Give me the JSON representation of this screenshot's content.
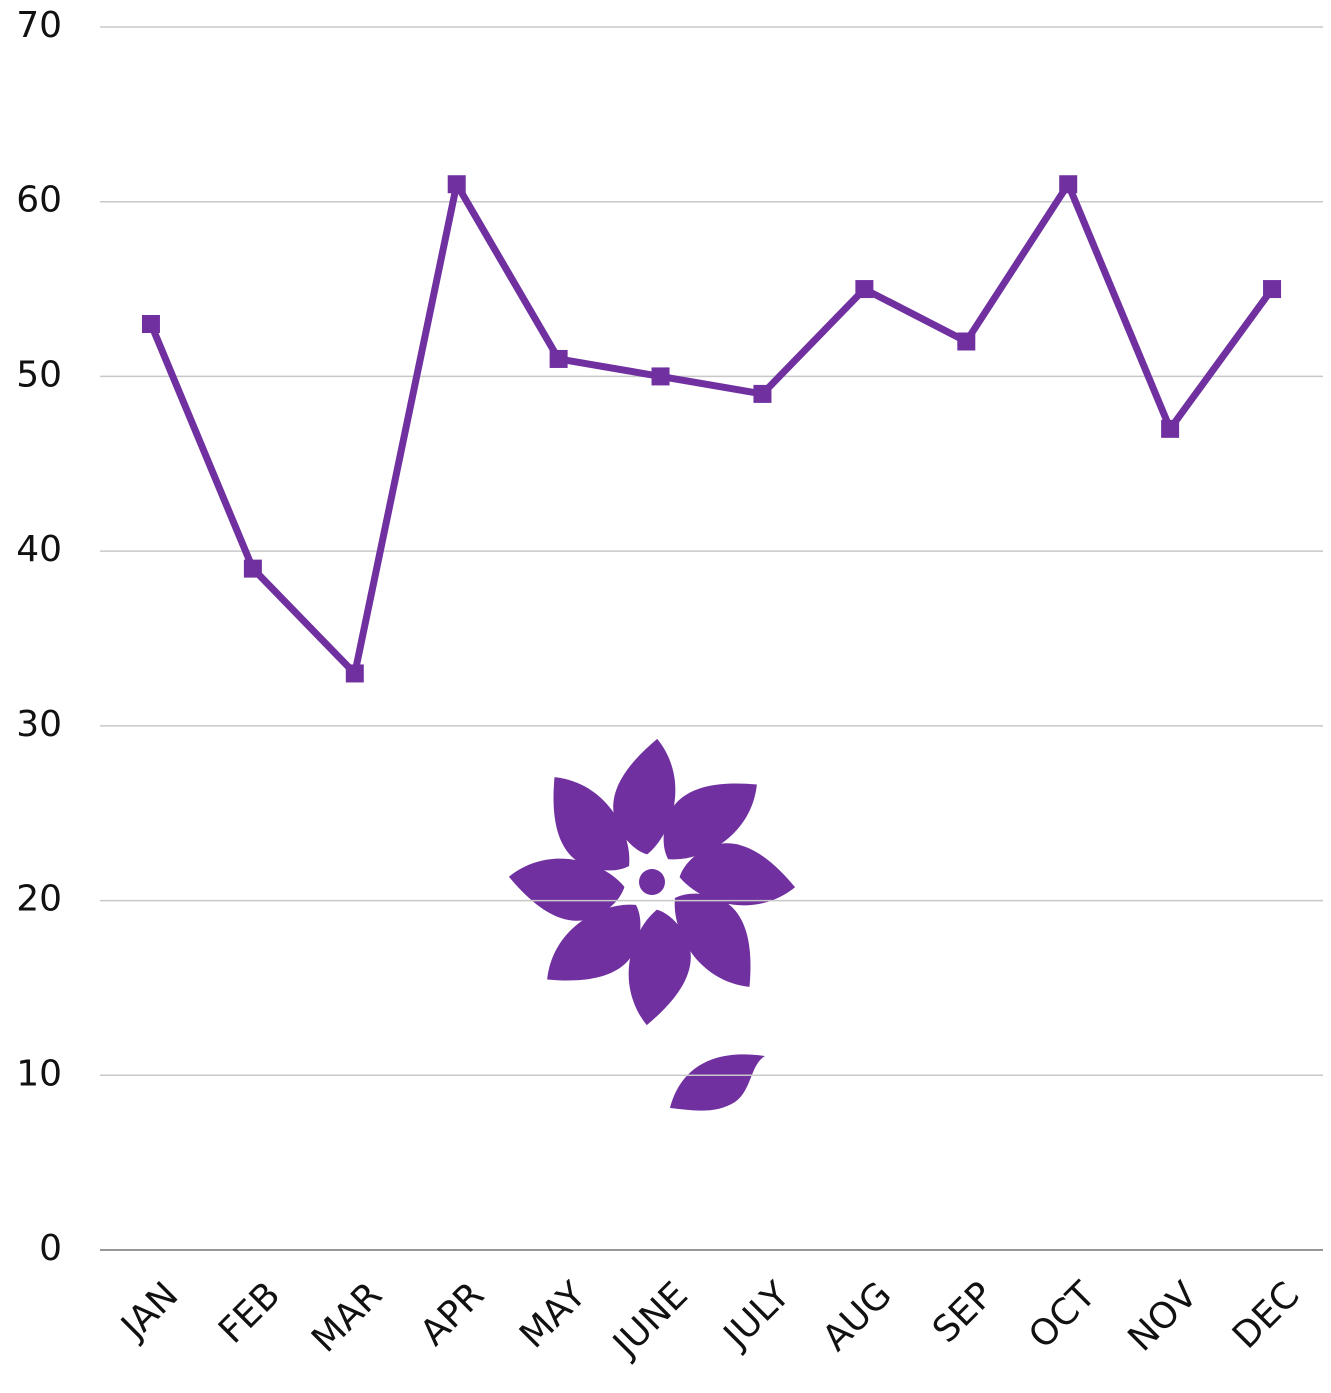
{
  "chart_data": {
    "type": "line",
    "categories": [
      "JAN",
      "FEB",
      "MAR",
      "APR",
      "MAY",
      "JUNE",
      "JULY",
      "AUG",
      "SEP",
      "OCT",
      "NOV",
      "DEC"
    ],
    "values": [
      53,
      39,
      33,
      61,
      51,
      50,
      49,
      55,
      52,
      61,
      47,
      55
    ],
    "color": "#7030a0",
    "ylim": [
      0,
      70
    ],
    "yticks": [
      0,
      10,
      20,
      30,
      40,
      50,
      60,
      70
    ],
    "grid": true
  }
}
